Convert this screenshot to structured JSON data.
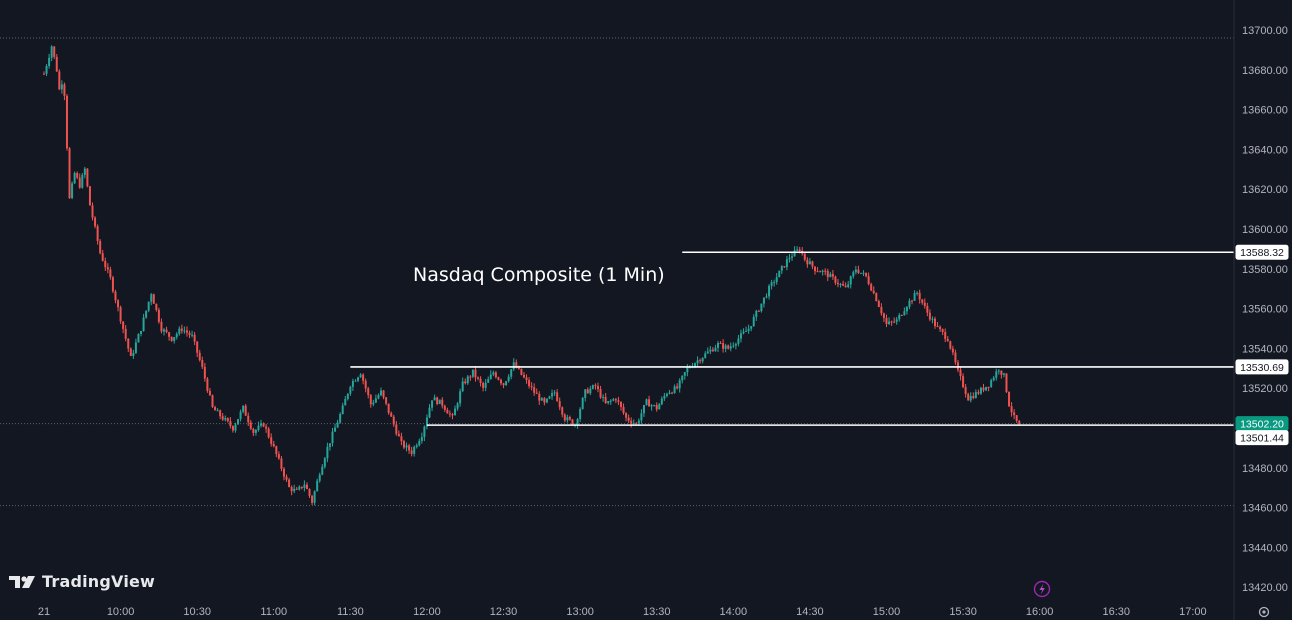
{
  "chart_data": {
    "type": "candlestick",
    "title": "Nasdaq Composite (1 Min)",
    "yaxis": {
      "ylim": [
        13410,
        13700
      ],
      "ticks": [
        13420,
        13440,
        13460,
        13480,
        13500,
        13520,
        13540,
        13560,
        13580,
        13600,
        13620,
        13640,
        13660,
        13680,
        13700
      ],
      "tick_labels": [
        "13420.00",
        "13440.00",
        "13460.00",
        "13480.00",
        "13500.00",
        "13520.00",
        "13540.00",
        "13560.00",
        "13580.00",
        "13600.00",
        "13620.00",
        "13640.00",
        "13660.00",
        "13680.00",
        "13700.00"
      ]
    },
    "xaxis": {
      "ticks": [
        "09:30",
        "10:00",
        "10:30",
        "11:00",
        "11:30",
        "12:00",
        "12:30",
        "13:00",
        "13:30",
        "14:00",
        "14:30",
        "15:00",
        "15:30",
        "16:00",
        "16:30",
        "17:00"
      ],
      "tick_labels": [
        "21",
        "10:00",
        "10:30",
        "11:00",
        "11:30",
        "12:00",
        "12:30",
        "13:00",
        "13:30",
        "14:00",
        "14:30",
        "15:00",
        "15:30",
        "16:00",
        "16:30",
        "17:00"
      ]
    },
    "price_path": [
      [
        "09:30",
        13678
      ],
      [
        "09:33",
        13692
      ],
      [
        "09:35",
        13680
      ],
      [
        "09:36",
        13670
      ],
      [
        "09:37",
        13674
      ],
      [
        "09:38",
        13668
      ],
      [
        "09:40",
        13615
      ],
      [
        "09:42",
        13628
      ],
      [
        "09:44",
        13622
      ],
      [
        "09:46",
        13630
      ],
      [
        "09:48",
        13612
      ],
      [
        "09:52",
        13588
      ],
      [
        "09:56",
        13575
      ],
      [
        "10:00",
        13555
      ],
      [
        "10:04",
        13535
      ],
      [
        "10:08",
        13550
      ],
      [
        "10:12",
        13568
      ],
      [
        "10:16",
        13550
      ],
      [
        "10:20",
        13545
      ],
      [
        "10:24",
        13550
      ],
      [
        "10:28",
        13546
      ],
      [
        "10:32",
        13530
      ],
      [
        "10:36",
        13510
      ],
      [
        "10:40",
        13505
      ],
      [
        "10:44",
        13500
      ],
      [
        "10:48",
        13510
      ],
      [
        "10:52",
        13498
      ],
      [
        "10:56",
        13502
      ],
      [
        "11:00",
        13490
      ],
      [
        "11:03",
        13480
      ],
      [
        "11:06",
        13470
      ],
      [
        "11:09",
        13468
      ],
      [
        "11:12",
        13472
      ],
      [
        "11:15",
        13463
      ],
      [
        "11:18",
        13478
      ],
      [
        "11:21",
        13490
      ],
      [
        "11:24",
        13500
      ],
      [
        "11:27",
        13510
      ],
      [
        "11:30",
        13522
      ],
      [
        "11:34",
        13528
      ],
      [
        "11:38",
        13512
      ],
      [
        "11:42",
        13518
      ],
      [
        "11:46",
        13505
      ],
      [
        "11:50",
        13492
      ],
      [
        "11:54",
        13488
      ],
      [
        "11:58",
        13497
      ],
      [
        "12:02",
        13515
      ],
      [
        "12:06",
        13512
      ],
      [
        "12:10",
        13505
      ],
      [
        "12:14",
        13522
      ],
      [
        "12:18",
        13528
      ],
      [
        "12:22",
        13520
      ],
      [
        "12:26",
        13528
      ],
      [
        "12:30",
        13522
      ],
      [
        "12:34",
        13532
      ],
      [
        "12:38",
        13525
      ],
      [
        "12:42",
        13518
      ],
      [
        "12:46",
        13512
      ],
      [
        "12:50",
        13518
      ],
      [
        "12:54",
        13505
      ],
      [
        "12:58",
        13502
      ],
      [
        "13:02",
        13518
      ],
      [
        "13:06",
        13521
      ],
      [
        "13:10",
        13512
      ],
      [
        "13:14",
        13515
      ],
      [
        "13:18",
        13505
      ],
      [
        "13:22",
        13502
      ],
      [
        "13:26",
        13513
      ],
      [
        "13:30",
        13510
      ],
      [
        "13:34",
        13518
      ],
      [
        "13:38",
        13520
      ],
      [
        "13:42",
        13530
      ],
      [
        "13:46",
        13534
      ],
      [
        "13:50",
        13538
      ],
      [
        "13:54",
        13542
      ],
      [
        "13:58",
        13540
      ],
      [
        "14:02",
        13545
      ],
      [
        "14:06",
        13550
      ],
      [
        "14:10",
        13560
      ],
      [
        "14:14",
        13570
      ],
      [
        "14:18",
        13578
      ],
      [
        "14:22",
        13586
      ],
      [
        "14:26",
        13590
      ],
      [
        "14:28",
        13585
      ],
      [
        "14:32",
        13580
      ],
      [
        "14:36",
        13578
      ],
      [
        "14:40",
        13574
      ],
      [
        "14:44",
        13570
      ],
      [
        "14:48",
        13580
      ],
      [
        "14:52",
        13576
      ],
      [
        "14:56",
        13565
      ],
      [
        "15:00",
        13552
      ],
      [
        "15:04",
        13554
      ],
      [
        "15:08",
        13562
      ],
      [
        "15:12",
        13568
      ],
      [
        "15:16",
        13558
      ],
      [
        "15:20",
        13550
      ],
      [
        "15:24",
        13545
      ],
      [
        "15:28",
        13528
      ],
      [
        "15:32",
        13515
      ],
      [
        "15:36",
        13518
      ],
      [
        "15:40",
        13522
      ],
      [
        "15:44",
        13530
      ],
      [
        "15:46",
        13526
      ],
      [
        "15:48",
        13512
      ],
      [
        "15:50",
        13505
      ],
      [
        "15:52",
        13501
      ]
    ],
    "horizontal_levels": [
      {
        "label": "13588.32",
        "value": 13588.32,
        "from": "13:40",
        "to": "axis"
      },
      {
        "label": "13530.69",
        "value": 13530.69,
        "from": "11:30",
        "to": "axis"
      },
      {
        "label": "13501.44",
        "value": 13501.44,
        "from": "12:00",
        "to": "axis"
      }
    ],
    "last_price": {
      "label": "13502.20",
      "value": 13502.2
    },
    "dotted_levels": [
      13696,
      13502.2,
      13461
    ],
    "colors": {
      "up": "#26a69a",
      "down": "#ef5350",
      "background": "#131722",
      "level_line": "#ffffff",
      "last_price_tag": "#089981"
    }
  },
  "brand": {
    "name": "TradingView"
  }
}
